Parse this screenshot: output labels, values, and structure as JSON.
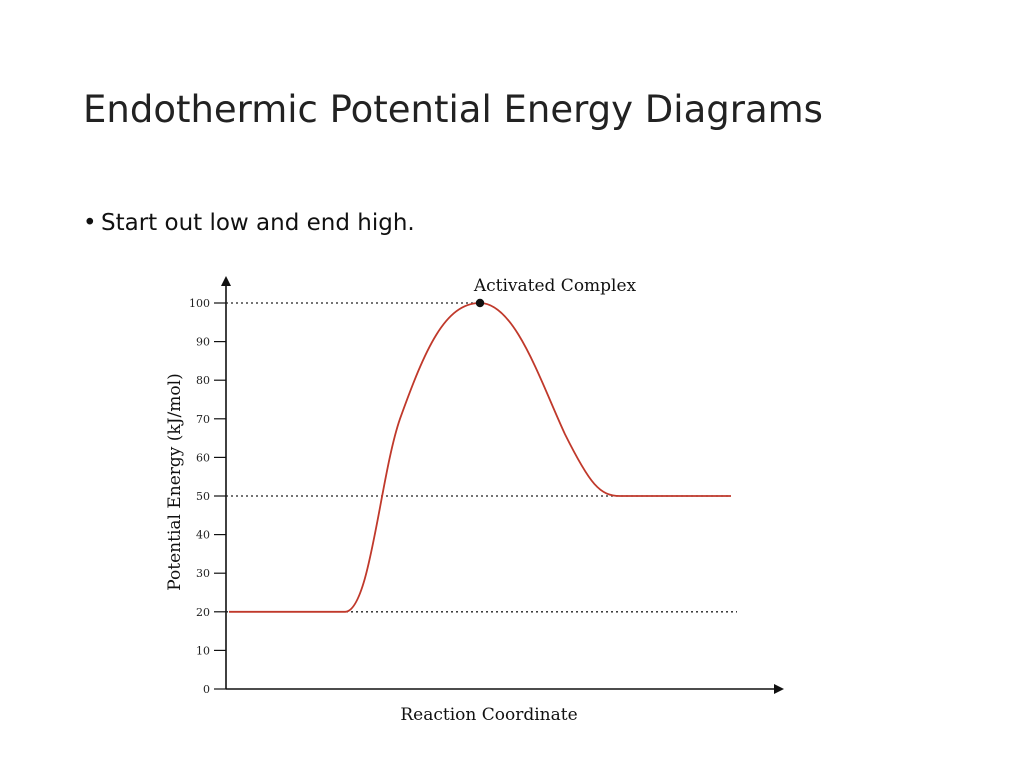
{
  "slide": {
    "title": "Endothermic Potential Energy Diagrams",
    "bullet": "Start out low and end high."
  },
  "chart_data": {
    "type": "line",
    "title": "",
    "xlabel": "Reaction Coordinate",
    "ylabel": "Potential Energy (kJ/mol)",
    "ylim": [
      0,
      100
    ],
    "yticks": [
      0,
      10,
      20,
      30,
      40,
      50,
      60,
      70,
      80,
      90,
      100
    ],
    "ytick_labels": [
      "0",
      "10",
      "20",
      "30",
      "40",
      "50",
      "60",
      "70",
      "80",
      "90",
      "100"
    ],
    "x_axis_ticks_shown": false,
    "grid": false,
    "series": [
      {
        "color": "#c0392b",
        "reactant_energy": 20,
        "activated_complex_energy": 100,
        "product_energy": 50
      }
    ],
    "reference_lines": [
      {
        "y": 100,
        "style": "dotted"
      },
      {
        "y": 50,
        "style": "dotted"
      },
      {
        "y": 20,
        "style": "dotted"
      }
    ],
    "annotations": [
      {
        "text": "Activated Complex",
        "y": 100,
        "marker": "dot"
      }
    ]
  }
}
